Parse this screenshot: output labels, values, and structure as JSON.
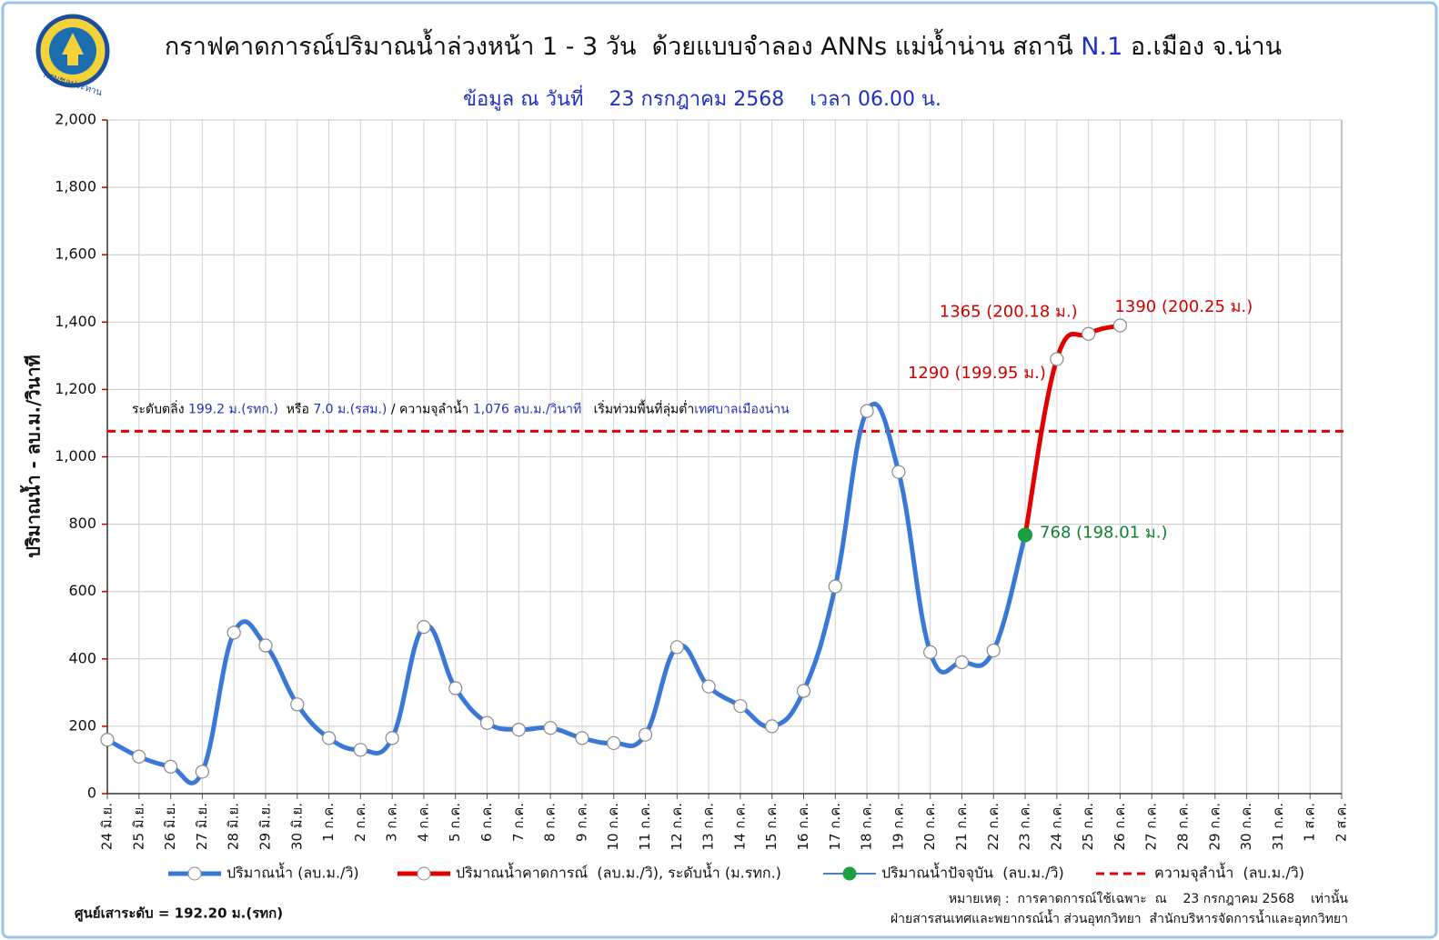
{
  "chart_data": {
    "type": "line",
    "title_parts": [
      "กราฟคาดการณ์ปริมาณน้ำล่วงหน้า 1 - 3 วัน  ด้วยแบบจำลอง ANNs แม่น้ำน่าน สถานี ",
      "N.1",
      " อ.เมือง จ.น่าน"
    ],
    "subtitle": "ข้อมูล ณ วันที่    23 กรกฎาคม 2568    เวลา 06.00 น.",
    "logo_text": "กรมชลประทาน",
    "y_label": "ปริมาณน้ำ - ลบ.ม./วินาที",
    "categories": [
      "24 มิ.ย.",
      "25 มิ.ย.",
      "26 มิ.ย.",
      "27 มิ.ย.",
      "28 มิ.ย.",
      "29 มิ.ย.",
      "30 มิ.ย.",
      "1 ก.ค.",
      "2 ก.ค.",
      "3 ก.ค.",
      "4 ก.ค.",
      "5 ก.ค.",
      "6 ก.ค.",
      "7 ก.ค.",
      "8 ก.ค.",
      "9 ก.ค.",
      "10 ก.ค.",
      "11 ก.ค.",
      "12 ก.ค.",
      "13 ก.ค.",
      "14 ก.ค.",
      "15 ก.ค.",
      "16 ก.ค.",
      "17 ก.ค.",
      "18 ก.ค.",
      "19 ก.ค.",
      "20 ก.ค.",
      "21 ก.ค.",
      "22 ก.ค.",
      "23 ก.ค.",
      "24 ก.ค.",
      "25 ก.ค.",
      "26 ก.ค.",
      "27 ก.ค.",
      "28 ก.ค.",
      "29 ก.ค.",
      "30 ก.ค.",
      "31 ก.ค.",
      "1 ส.ค.",
      "2 ส.ค."
    ],
    "series": [
      {
        "name": "ปริมาณน้ำ (ลบ.ม./วิ)",
        "color": "#3a78d8",
        "line": true,
        "marker_fill": "#ffffff",
        "values": [
          160,
          110,
          80,
          65,
          478,
          440,
          265,
          165,
          130,
          165,
          495,
          313,
          210,
          190,
          195,
          165,
          150,
          175,
          435,
          318,
          260,
          200,
          305,
          615,
          1136,
          955,
          420,
          390,
          425,
          768,
          null,
          null,
          null,
          null,
          null,
          null,
          null,
          null,
          null,
          null
        ]
      },
      {
        "name": "ปริมาณน้ำคาดการณ์  (ลบ.ม./วิ), ระดับน้ำ (ม.รทก.)",
        "color": "#e00000",
        "line": true,
        "marker_fill": "#ffffff",
        "values": [
          null,
          null,
          null,
          null,
          null,
          null,
          null,
          null,
          null,
          null,
          null,
          null,
          null,
          null,
          null,
          null,
          null,
          null,
          null,
          null,
          null,
          null,
          null,
          null,
          null,
          null,
          null,
          null,
          null,
          768,
          1290,
          1365,
          1390,
          null,
          null,
          null,
          null,
          null,
          null,
          null
        ],
        "value_labels": [
          null,
          null,
          null,
          null,
          null,
          null,
          null,
          null,
          null,
          null,
          null,
          null,
          null,
          null,
          null,
          null,
          null,
          null,
          null,
          null,
          null,
          null,
          null,
          null,
          null,
          null,
          null,
          null,
          null,
          null,
          "1290 (199.95 ม.)",
          "1365 (200.18 ม.)",
          "1390 (200.25 ม.)",
          null,
          null,
          null,
          null,
          null,
          null,
          null
        ]
      },
      {
        "name": "ปริมาณน้ำปัจจุบัน  (ลบ.ม./วิ)",
        "color": "#1aa040",
        "line": false,
        "marker_fill": "#1aa040",
        "values": [
          null,
          null,
          null,
          null,
          null,
          null,
          null,
          null,
          null,
          null,
          null,
          null,
          null,
          null,
          null,
          null,
          null,
          null,
          null,
          null,
          null,
          null,
          null,
          null,
          null,
          null,
          null,
          null,
          null,
          768,
          null,
          null,
          null,
          null,
          null,
          null,
          null,
          null,
          null,
          null
        ],
        "value_labels": [
          null,
          null,
          null,
          null,
          null,
          null,
          null,
          null,
          null,
          null,
          null,
          null,
          null,
          null,
          null,
          null,
          null,
          null,
          null,
          null,
          null,
          null,
          null,
          null,
          null,
          null,
          null,
          null,
          null,
          "768 (198.01 ม.)",
          null,
          null,
          null,
          null,
          null,
          null,
          null,
          null,
          null,
          null
        ]
      }
    ],
    "reference_line": {
      "name": "ความจุลำน้ำ  (ลบ.ม./วิ)",
      "value": 1076,
      "color": "#e00000"
    },
    "annotation_parts": [
      {
        "text": "ระดับตลิ่ง ",
        "color": "#000000"
      },
      {
        "text": "199.2 ม.(รทก.)",
        "color": "#2030c0"
      },
      {
        "text": "  หรือ ",
        "color": "#000000"
      },
      {
        "text": "7.0 ม.(รสม.)",
        "color": "#2030c0"
      },
      {
        "text": " / ความจุลำน้ำ ",
        "color": "#000000"
      },
      {
        "text": "1,076 ลบ.ม./วินาที",
        "color": "#2030c0"
      },
      {
        "text": "   เริ่มท่วมพื้นที่ลุ่มต่ำ",
        "color": "#000000"
      },
      {
        "text": "เทศบาลเมืองน่าน",
        "color": "#2030c0"
      }
    ],
    "ylim": [
      0,
      2000
    ],
    "yticks": [
      0,
      200,
      400,
      600,
      800,
      {
        "value": 1000,
        "label": "1,000"
      },
      {
        "value": 1200,
        "label": "1,200"
      },
      {
        "value": 1400,
        "label": "1,400"
      },
      {
        "value": 1600,
        "label": "1,600"
      },
      {
        "value": 1800,
        "label": "1,800"
      },
      {
        "value": 2000,
        "label": "2,000"
      }
    ],
    "grid": true,
    "footer_left": "ศูนย์เสาระดับ = 192.20 ม.(รทก)",
    "note": "หมายเหตุ :  การคาดการณ์ใช้เฉพาะ  ณ    23 กรกฎาคม 2568    เท่านั้น",
    "credit": "ฝ่ายสารสนเทศและพยากรณ์น้ำ ส่วนอุทกวิทยา  สำนักบริหารจัดการน้ำและอุทกวิทยา"
  }
}
